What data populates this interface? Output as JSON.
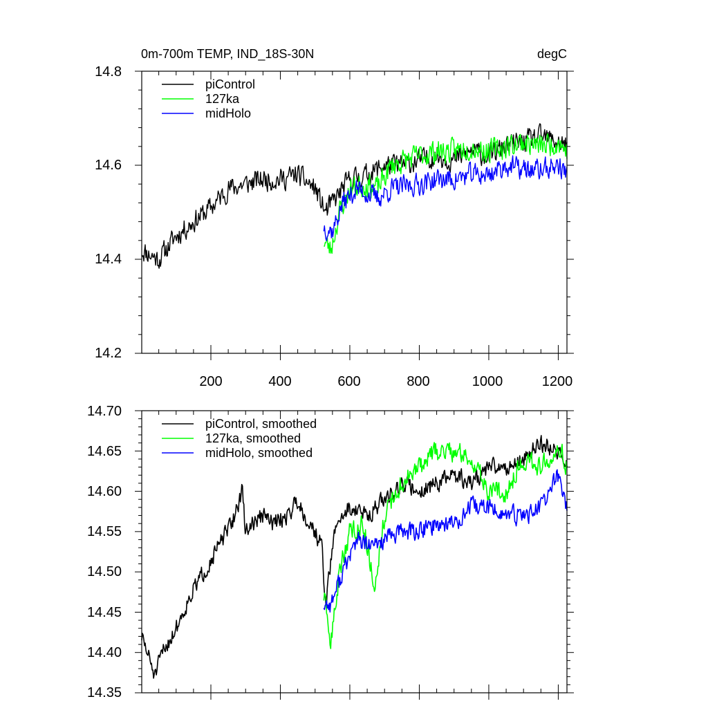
{
  "chart_data": [
    {
      "type": "line",
      "title": "0m-700m TEMP, IND_18S-30N",
      "units": "degC",
      "xlabel": "",
      "ylabel": "",
      "xlim": [
        1,
        1225
      ],
      "ylim": [
        14.2,
        14.8
      ],
      "x_ticks": [
        200,
        400,
        600,
        800,
        1000,
        1200
      ],
      "x_tick_labels": [
        "200",
        "400",
        "600",
        "800",
        "1000",
        "1200"
      ],
      "y_ticks": [
        14.2,
        14.4,
        14.6,
        14.8
      ],
      "y_tick_labels": [
        "14.2",
        "14.4",
        "14.6",
        "14.8"
      ],
      "legend_position": "top-left",
      "series": [
        {
          "name": "piControl",
          "color": "#000000",
          "range": [
            1,
            1225
          ],
          "anchors": [
            [
              1,
              14.42
            ],
            [
              50,
              14.4
            ],
            [
              100,
              14.45
            ],
            [
              150,
              14.48
            ],
            [
              200,
              14.51
            ],
            [
              250,
              14.55
            ],
            [
              300,
              14.56
            ],
            [
              350,
              14.57
            ],
            [
              400,
              14.57
            ],
            [
              450,
              14.58
            ],
            [
              500,
              14.55
            ],
            [
              530,
              14.5
            ],
            [
              560,
              14.53
            ],
            [
              600,
              14.57
            ],
            [
              650,
              14.58
            ],
            [
              700,
              14.6
            ],
            [
              750,
              14.6
            ],
            [
              800,
              14.61
            ],
            [
              850,
              14.62
            ],
            [
              900,
              14.61
            ],
            [
              950,
              14.63
            ],
            [
              1000,
              14.62
            ],
            [
              1050,
              14.64
            ],
            [
              1100,
              14.65
            ],
            [
              1150,
              14.66
            ],
            [
              1200,
              14.65
            ],
            [
              1225,
              14.64
            ]
          ],
          "amplitude": 0.032,
          "seed": 11
        },
        {
          "name": "127ka",
          "color": "#00ff00",
          "range": [
            525,
            1225
          ],
          "anchors": [
            [
              525,
              14.44
            ],
            [
              545,
              14.42
            ],
            [
              570,
              14.5
            ],
            [
              600,
              14.55
            ],
            [
              650,
              14.56
            ],
            [
              680,
              14.55
            ],
            [
              720,
              14.6
            ],
            [
              800,
              14.62
            ],
            [
              850,
              14.63
            ],
            [
              900,
              14.63
            ],
            [
              950,
              14.64
            ],
            [
              1000,
              14.63
            ],
            [
              1050,
              14.64
            ],
            [
              1100,
              14.65
            ],
            [
              1150,
              14.64
            ],
            [
              1200,
              14.65
            ],
            [
              1225,
              14.63
            ]
          ],
          "amplitude": 0.035,
          "seed": 23
        },
        {
          "name": "midHolo",
          "color": "#0000ff",
          "range": [
            525,
            1225
          ],
          "anchors": [
            [
              525,
              14.47
            ],
            [
              550,
              14.46
            ],
            [
              580,
              14.52
            ],
            [
              620,
              14.55
            ],
            [
              680,
              14.53
            ],
            [
              720,
              14.55
            ],
            [
              800,
              14.56
            ],
            [
              850,
              14.57
            ],
            [
              900,
              14.57
            ],
            [
              950,
              14.58
            ],
            [
              1000,
              14.58
            ],
            [
              1050,
              14.6
            ],
            [
              1100,
              14.59
            ],
            [
              1150,
              14.59
            ],
            [
              1200,
              14.6
            ],
            [
              1225,
              14.58
            ]
          ],
          "amplitude": 0.032,
          "seed": 37
        }
      ]
    },
    {
      "type": "line",
      "title": "",
      "xlabel": "",
      "ylabel": "",
      "xlim": [
        1,
        1225
      ],
      "ylim": [
        14.35,
        14.7
      ],
      "x_ticks": [
        200,
        400,
        600,
        800,
        1000,
        1200
      ],
      "y_ticks": [
        14.35,
        14.4,
        14.45,
        14.5,
        14.55,
        14.6,
        14.65,
        14.7
      ],
      "y_tick_labels": [
        "14.35",
        "14.40",
        "14.45",
        "14.50",
        "14.55",
        "14.60",
        "14.65",
        "14.70"
      ],
      "legend_position": "top-left",
      "series": [
        {
          "name": "piControl, smoothed",
          "color": "#000000",
          "range": [
            1,
            1225
          ],
          "anchors": [
            [
              1,
              14.42
            ],
            [
              40,
              14.37
            ],
            [
              60,
              14.4
            ],
            [
              100,
              14.43
            ],
            [
              140,
              14.47
            ],
            [
              180,
              14.5
            ],
            [
              220,
              14.53
            ],
            [
              260,
              14.56
            ],
            [
              290,
              14.6
            ],
            [
              300,
              14.55
            ],
            [
              320,
              14.56
            ],
            [
              350,
              14.57
            ],
            [
              380,
              14.56
            ],
            [
              420,
              14.57
            ],
            [
              450,
              14.59
            ],
            [
              470,
              14.57
            ],
            [
              500,
              14.55
            ],
            [
              520,
              14.53
            ],
            [
              530,
              14.46
            ],
            [
              560,
              14.56
            ],
            [
              600,
              14.58
            ],
            [
              650,
              14.57
            ],
            [
              700,
              14.59
            ],
            [
              750,
              14.61
            ],
            [
              800,
              14.6
            ],
            [
              850,
              14.61
            ],
            [
              900,
              14.62
            ],
            [
              950,
              14.61
            ],
            [
              1000,
              14.63
            ],
            [
              1050,
              14.63
            ],
            [
              1100,
              14.64
            ],
            [
              1150,
              14.66
            ],
            [
              1200,
              14.65
            ],
            [
              1225,
              14.63
            ]
          ],
          "amplitude": 0.015,
          "seed": 51
        },
        {
          "name": "127ka, smoothed",
          "color": "#00ff00",
          "range": [
            525,
            1225
          ],
          "anchors": [
            [
              525,
              14.47
            ],
            [
              545,
              14.41
            ],
            [
              570,
              14.5
            ],
            [
              600,
              14.55
            ],
            [
              640,
              14.56
            ],
            [
              670,
              14.48
            ],
            [
              700,
              14.57
            ],
            [
              750,
              14.61
            ],
            [
              800,
              14.63
            ],
            [
              850,
              14.65
            ],
            [
              900,
              14.65
            ],
            [
              950,
              14.64
            ],
            [
              1000,
              14.6
            ],
            [
              1050,
              14.6
            ],
            [
              1100,
              14.64
            ],
            [
              1150,
              14.63
            ],
            [
              1200,
              14.66
            ],
            [
              1225,
              14.63
            ]
          ],
          "amplitude": 0.018,
          "seed": 63
        },
        {
          "name": "midHolo, smoothed",
          "color": "#0000ff",
          "range": [
            525,
            1225
          ],
          "anchors": [
            [
              525,
              14.46
            ],
            [
              545,
              14.46
            ],
            [
              580,
              14.5
            ],
            [
              620,
              14.54
            ],
            [
              660,
              14.53
            ],
            [
              700,
              14.54
            ],
            [
              750,
              14.55
            ],
            [
              800,
              14.55
            ],
            [
              850,
              14.56
            ],
            [
              900,
              14.56
            ],
            [
              950,
              14.58
            ],
            [
              1000,
              14.58
            ],
            [
              1050,
              14.57
            ],
            [
              1100,
              14.57
            ],
            [
              1150,
              14.58
            ],
            [
              1200,
              14.62
            ],
            [
              1225,
              14.58
            ]
          ],
          "amplitude": 0.016,
          "seed": 77
        }
      ]
    }
  ]
}
